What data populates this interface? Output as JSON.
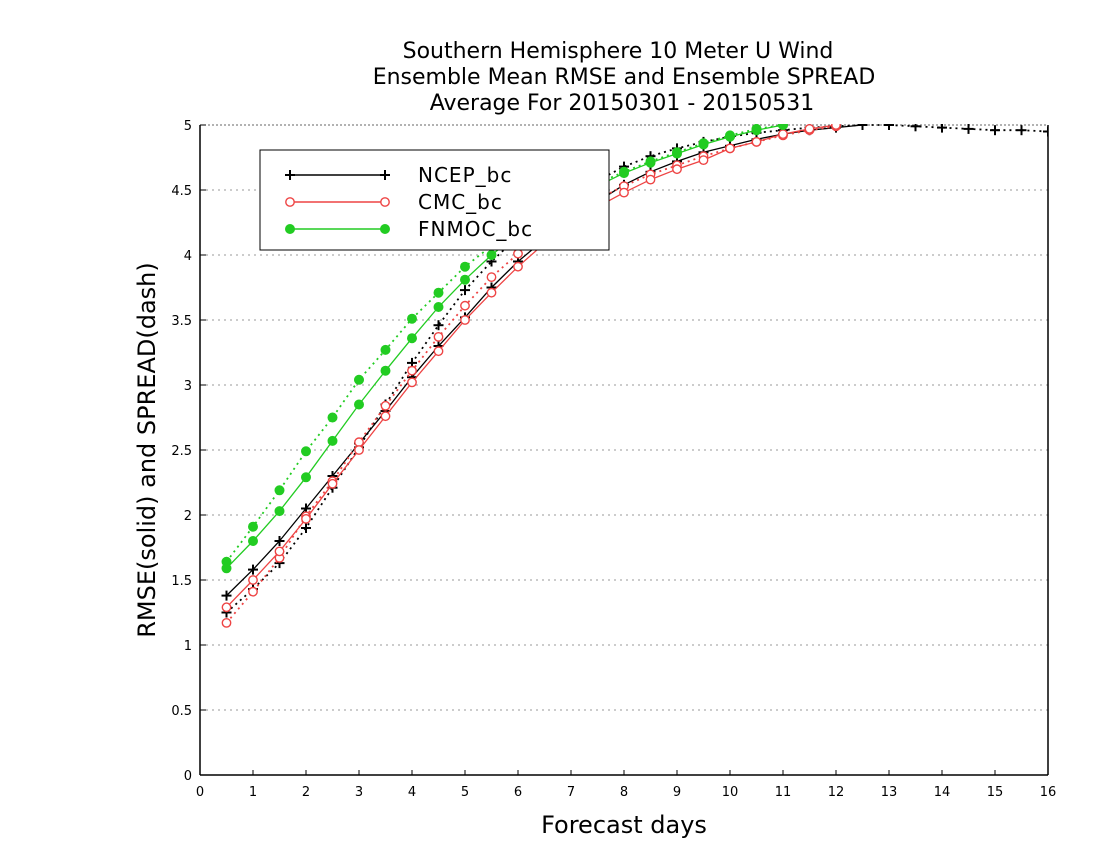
{
  "chart_data": {
    "type": "line",
    "title": [
      "Southern Hemisphere 10 Meter U Wind",
      "Ensemble Mean RMSE and Ensemble SPREAD",
      "Average For 20150301 - 20150531"
    ],
    "xlabel": "Forecast days",
    "ylabel": "RMSE(solid) and SPREAD(dash)",
    "xlim": [
      0,
      16
    ],
    "ylim": [
      0,
      5
    ],
    "xticks": [
      0,
      1,
      2,
      3,
      4,
      5,
      6,
      7,
      8,
      9,
      10,
      11,
      12,
      13,
      14,
      15,
      16
    ],
    "yticks": [
      0,
      0.5,
      1,
      1.5,
      2,
      2.5,
      3,
      3.5,
      4,
      4.5,
      5
    ],
    "ytick_labels": [
      "0",
      "0.5",
      "1",
      "1.5",
      "2",
      "2.5",
      "3",
      "3.5",
      "4",
      "4.5",
      "5"
    ],
    "grid": "horizontal-dotted",
    "legend_position": "top-left",
    "x": [
      0.5,
      1,
      1.5,
      2,
      2.5,
      3,
      3.5,
      4,
      4.5,
      5,
      5.5,
      6,
      6.5,
      7,
      7.5,
      8,
      8.5,
      9,
      9.5,
      10,
      10.5,
      11,
      11.5,
      12,
      12.5,
      13,
      13.5,
      14,
      14.5,
      15,
      15.5,
      16
    ],
    "series": [
      {
        "name": "NCEP_bc",
        "color": "#000000",
        "marker": "plus",
        "rmse": [
          1.38,
          1.58,
          1.8,
          2.05,
          2.3,
          2.55,
          2.8,
          3.06,
          3.3,
          3.52,
          3.75,
          3.95,
          4.12,
          4.27,
          4.41,
          4.54,
          4.64,
          4.72,
          4.79,
          4.84,
          4.89,
          4.93,
          4.96,
          4.98,
          5.0
        ],
        "spread": [
          1.25,
          1.43,
          1.63,
          1.9,
          2.21,
          2.52,
          2.85,
          3.17,
          3.46,
          3.73,
          3.95,
          4.14,
          4.31,
          4.45,
          4.57,
          4.68,
          4.76,
          4.82,
          4.87,
          4.91,
          4.94,
          4.96,
          4.98,
          4.99,
          5.0,
          5.0,
          4.99,
          4.98,
          4.97,
          4.96,
          4.96,
          4.95
        ]
      },
      {
        "name": "CMC_bc",
        "color": "#ee4444",
        "marker": "open-circle",
        "rmse": [
          1.29,
          1.5,
          1.72,
          1.97,
          2.24,
          2.5,
          2.76,
          3.02,
          3.26,
          3.5,
          3.71,
          3.91,
          4.09,
          4.24,
          4.37,
          4.48,
          4.58,
          4.66,
          4.73,
          4.82,
          4.87,
          4.93,
          4.97,
          5.0
        ],
        "spread": [
          1.17,
          1.41,
          1.67,
          1.99,
          2.26,
          2.56,
          2.84,
          3.11,
          3.37,
          3.61,
          3.83,
          4.01,
          4.17,
          4.31,
          4.43,
          4.53,
          4.62,
          4.69,
          4.76,
          4.82,
          4.87,
          4.92,
          4.96,
          4.99
        ]
      },
      {
        "name": "FNMOC_bc",
        "color": "#22cc22",
        "marker": "filled-circle",
        "rmse": [
          1.59,
          1.8,
          2.03,
          2.29,
          2.57,
          2.85,
          3.11,
          3.36,
          3.6,
          3.81,
          4.0,
          4.16,
          4.3,
          4.42,
          4.53,
          4.63,
          4.71,
          4.78,
          4.85,
          4.91,
          4.96,
          5.0
        ],
        "spread": [
          1.64,
          1.91,
          2.19,
          2.49,
          2.75,
          3.04,
          3.27,
          3.51,
          3.71,
          3.91,
          4.07,
          4.21,
          4.34,
          4.45,
          4.55,
          4.64,
          4.72,
          4.79,
          4.86,
          4.92,
          4.97,
          5.0
        ]
      }
    ]
  }
}
